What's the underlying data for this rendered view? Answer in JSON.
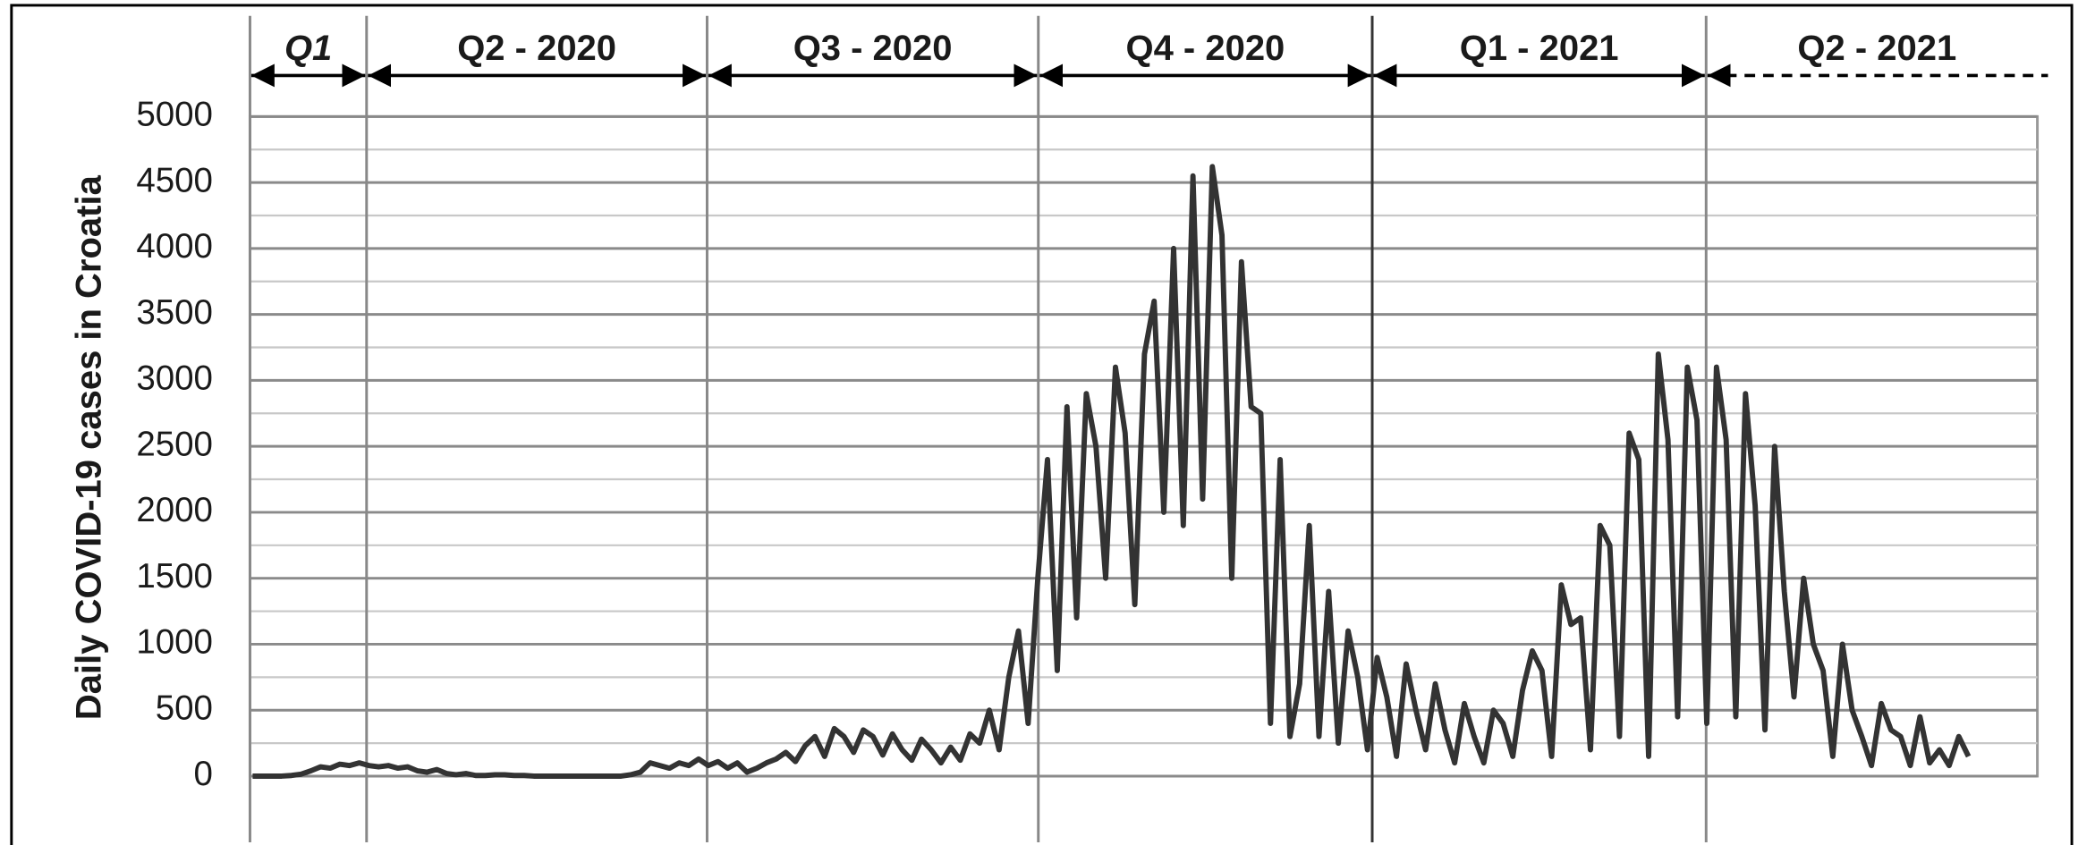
{
  "chart_data": {
    "type": "line",
    "ylabel": "Daily COVID-19 cases in Croatia",
    "quarters": [
      "Q1",
      "Q2 - 2020",
      "Q3 - 2020",
      "Q4 - 2020",
      "Q1 - 2021",
      "Q2 - 2021"
    ],
    "ylim": [
      0,
      5000
    ],
    "yticks": [
      0,
      500,
      1000,
      1500,
      2000,
      2500,
      3000,
      3500,
      4000,
      4500,
      5000
    ],
    "grid": true,
    "series": [
      {
        "name": "Daily COVID-19 cases",
        "color": "#333333",
        "values": [
          0,
          0,
          0,
          0,
          5,
          15,
          40,
          70,
          60,
          90,
          80,
          100,
          80,
          70,
          80,
          60,
          70,
          40,
          30,
          50,
          20,
          10,
          20,
          5,
          5,
          10,
          10,
          5,
          5,
          0,
          0,
          0,
          0,
          0,
          0,
          0,
          0,
          0,
          0,
          10,
          30,
          100,
          80,
          60,
          100,
          80,
          130,
          80,
          110,
          60,
          100,
          30,
          60,
          100,
          130,
          180,
          110,
          230,
          300,
          150,
          360,
          300,
          180,
          350,
          300,
          160,
          320,
          200,
          120,
          280,
          200,
          100,
          220,
          120,
          320,
          250,
          500,
          200,
          750,
          1100,
          400,
          1500,
          2400,
          800,
          2800,
          1200,
          2900,
          2500,
          1500,
          3100,
          2600,
          1300,
          3200,
          3600,
          2000,
          4000,
          1900,
          4550,
          2100,
          4620,
          4100,
          1500,
          3900,
          2800,
          2750,
          400,
          2400,
          300,
          700,
          1900,
          300,
          1400,
          250,
          1100,
          750,
          200,
          900,
          600,
          150,
          850,
          500,
          200,
          700,
          350,
          100,
          550,
          300,
          100,
          500,
          400,
          150,
          650,
          950,
          800,
          150,
          1450,
          1150,
          1200,
          200,
          1900,
          1750,
          300,
          2600,
          2400,
          150,
          3200,
          2550,
          450,
          3100,
          2700,
          400,
          3100,
          2550,
          450,
          2900,
          2050,
          350,
          2500,
          1400,
          600,
          1500,
          1000,
          800,
          150,
          1000,
          500,
          300,
          80,
          550,
          350,
          300,
          80,
          450,
          100,
          200,
          80,
          300,
          150
        ]
      }
    ]
  }
}
